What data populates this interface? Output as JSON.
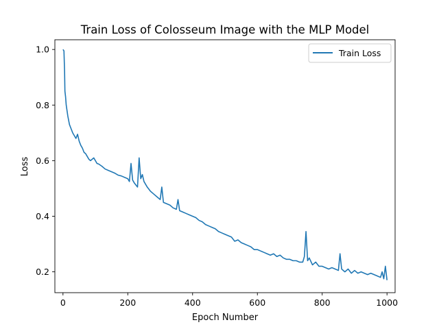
{
  "chart_data": {
    "type": "line",
    "title": "Train Loss of Colosseum Image with the MLP Model",
    "xlabel": "Epoch Number",
    "ylabel": "Loss",
    "xlim": [
      -25,
      1025
    ],
    "ylim": [
      0.125,
      1.035
    ],
    "xticks": [
      0,
      200,
      400,
      600,
      800,
      1000
    ],
    "yticks": [
      0.2,
      0.4,
      0.6,
      0.8,
      1.0
    ],
    "xtick_labels": [
      "0",
      "200",
      "400",
      "600",
      "800",
      "1000"
    ],
    "ytick_labels": [
      "0.2",
      "0.4",
      "0.6",
      "0.8",
      "1.0"
    ],
    "grid": false,
    "legend_position": "top-right",
    "series": [
      {
        "name": "Train Loss",
        "color": "#1f77b4",
        "x": [
          0,
          3,
          5,
          6,
          8,
          10,
          15,
          20,
          25,
          30,
          35,
          40,
          45,
          50,
          55,
          60,
          65,
          70,
          75,
          80,
          85,
          90,
          95,
          100,
          105,
          110,
          120,
          130,
          140,
          150,
          160,
          170,
          180,
          190,
          200,
          205,
          210,
          215,
          220,
          230,
          235,
          240,
          245,
          250,
          260,
          270,
          280,
          290,
          300,
          305,
          310,
          320,
          330,
          340,
          350,
          355,
          360,
          370,
          380,
          390,
          400,
          410,
          420,
          430,
          440,
          450,
          460,
          470,
          480,
          490,
          500,
          510,
          520,
          530,
          540,
          550,
          560,
          570,
          580,
          590,
          600,
          610,
          620,
          630,
          640,
          650,
          660,
          670,
          680,
          690,
          700,
          710,
          720,
          730,
          740,
          745,
          750,
          755,
          760,
          770,
          780,
          790,
          800,
          810,
          820,
          830,
          840,
          850,
          855,
          860,
          870,
          880,
          890,
          900,
          910,
          920,
          930,
          940,
          950,
          960,
          970,
          980,
          985,
          990,
          995,
          1000
        ],
        "y": [
          1.0,
          0.995,
          0.92,
          0.85,
          0.83,
          0.8,
          0.76,
          0.73,
          0.715,
          0.7,
          0.69,
          0.68,
          0.695,
          0.67,
          0.655,
          0.645,
          0.63,
          0.625,
          0.615,
          0.605,
          0.6,
          0.605,
          0.61,
          0.6,
          0.59,
          0.588,
          0.58,
          0.57,
          0.565,
          0.56,
          0.555,
          0.548,
          0.545,
          0.54,
          0.535,
          0.525,
          0.59,
          0.53,
          0.52,
          0.505,
          0.61,
          0.535,
          0.55,
          0.525,
          0.505,
          0.49,
          0.48,
          0.47,
          0.46,
          0.505,
          0.45,
          0.445,
          0.44,
          0.43,
          0.425,
          0.46,
          0.42,
          0.415,
          0.41,
          0.405,
          0.4,
          0.395,
          0.385,
          0.38,
          0.37,
          0.365,
          0.36,
          0.355,
          0.345,
          0.34,
          0.335,
          0.33,
          0.325,
          0.31,
          0.315,
          0.305,
          0.3,
          0.295,
          0.29,
          0.28,
          0.28,
          0.275,
          0.27,
          0.265,
          0.26,
          0.265,
          0.255,
          0.26,
          0.25,
          0.245,
          0.245,
          0.24,
          0.24,
          0.235,
          0.235,
          0.255,
          0.345,
          0.24,
          0.25,
          0.225,
          0.235,
          0.22,
          0.22,
          0.215,
          0.21,
          0.215,
          0.21,
          0.205,
          0.265,
          0.21,
          0.2,
          0.21,
          0.195,
          0.205,
          0.195,
          0.2,
          0.195,
          0.19,
          0.195,
          0.19,
          0.185,
          0.18,
          0.2,
          0.175,
          0.22,
          0.17
        ]
      }
    ]
  }
}
